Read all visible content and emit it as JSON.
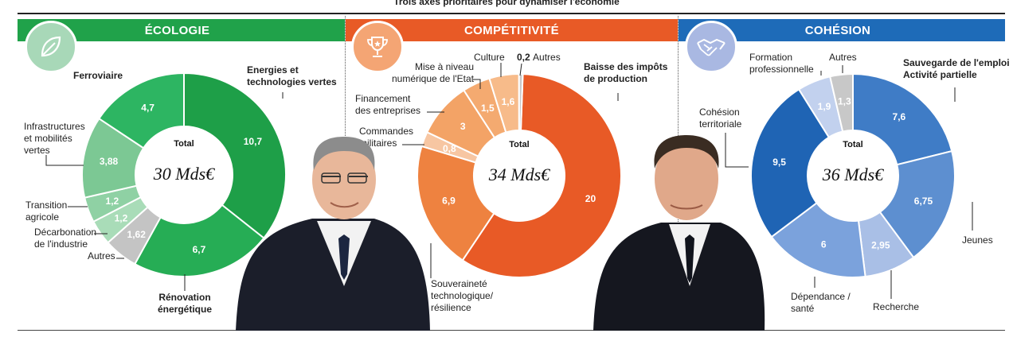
{
  "title": "Trois axes prioritaires pour dynamiser l'économie",
  "colors": {
    "ecologie": "#20a24a",
    "competitivite": "#e85a26",
    "cohesion": "#1e6bb8"
  },
  "icons": {
    "ecologie": "leaf-icon",
    "competitivite": "trophy-icon",
    "cohesion": "handshake-icon"
  },
  "chart_data": [
    {
      "type": "pie",
      "title": "ÉCOLOGIE",
      "total_label": "Total",
      "total_value": "30 Mds€",
      "slices": [
        {
          "label": "Energies et technologies vertes",
          "value": 10.7,
          "display": "10,7",
          "color": "#1e9f48"
        },
        {
          "label": "Rénovation énergétique",
          "value": 6.7,
          "display": "6,7",
          "color": "#26ad55"
        },
        {
          "label": "Autres",
          "value": 1.62,
          "display": "1,62",
          "color": "#c4c4c4"
        },
        {
          "label": "Décarbonation de l'industrie",
          "value": 1.2,
          "display": "1,2",
          "color": "#a9dcb8"
        },
        {
          "label": "Transition agricole",
          "value": 1.2,
          "display": "1,2",
          "color": "#8fd1a4"
        },
        {
          "label": "Infrastructures et mobilités vertes",
          "value": 3.88,
          "display": "3,88",
          "color": "#7cc894"
        },
        {
          "label": "Ferroviaire",
          "value": 4.7,
          "display": "4,7",
          "color": "#2db562"
        }
      ]
    },
    {
      "type": "pie",
      "title": "COMPÉTITIVITÉ",
      "total_label": "Total",
      "total_value": "34 Mds€",
      "slices": [
        {
          "label": "Baisse des impôts de production",
          "value": 20,
          "display": "20",
          "color": "#e85a26"
        },
        {
          "label": "Souveraineté technologique/ résilience",
          "value": 6.9,
          "display": "6,9",
          "color": "#ee8240"
        },
        {
          "label": "Commandes militaires",
          "value": 0.8,
          "display": "0,8",
          "color": "#f7c6a2"
        },
        {
          "label": "Financement des entreprises",
          "value": 3,
          "display": "3",
          "color": "#f3a366"
        },
        {
          "label": "Mise à niveau numérique de l'Etat",
          "value": 1.5,
          "display": "1,5",
          "color": "#f4aa70"
        },
        {
          "label": "Culture",
          "value": 1.6,
          "display": "1,6",
          "color": "#f7bb8a"
        },
        {
          "label": "Autres",
          "value": 0.2,
          "display": "0,2",
          "color": "#c9c9c9"
        }
      ]
    },
    {
      "type": "pie",
      "title": "COHÉSION",
      "total_label": "Total",
      "total_value": "36 Mds€",
      "slices": [
        {
          "label": "Sauvegarde de l'emploi Activité partielle",
          "value": 7.6,
          "display": "7,6",
          "color": "#3f7cc6"
        },
        {
          "label": "Jeunes",
          "value": 6.75,
          "display": "6,75",
          "color": "#5d8fd0"
        },
        {
          "label": "Recherche",
          "value": 2.95,
          "display": "2,95",
          "color": "#a9bfe6"
        },
        {
          "label": "Dépendance / santé",
          "value": 6,
          "display": "6",
          "color": "#7ba2dc"
        },
        {
          "label": "Cohésion territoriale",
          "value": 9.5,
          "display": "9,5",
          "color": "#1f64b4"
        },
        {
          "label": "Formation professionnelle",
          "value": 1.9,
          "display": "1,9",
          "color": "#c2d1ee"
        },
        {
          "label": "Autres",
          "value": 1.3,
          "display": "1,3",
          "color": "#c8c8c8"
        }
      ]
    }
  ]
}
